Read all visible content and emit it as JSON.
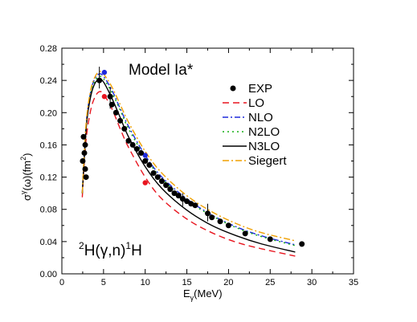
{
  "chart_data": {
    "type": "line",
    "annotations": {
      "model": "Model Ia*",
      "reaction_parts": [
        "2",
        "H(γ,n)",
        "1",
        "H"
      ]
    },
    "xlabel": {
      "main": "E",
      "sub": "γ",
      "rest": "(MeV)"
    },
    "ylabel": {
      "main": "σ",
      "sup1": "γ",
      "mid": "(ω)(fm",
      "sup2": "2",
      "end": ")"
    },
    "xlim": [
      0,
      35
    ],
    "ylim": [
      0.0,
      0.28
    ],
    "xticks": [
      0,
      5,
      10,
      15,
      20,
      25,
      30,
      35
    ],
    "xtick_labels": [
      "0",
      "5",
      "10",
      "15",
      "20",
      "25",
      "30",
      "35"
    ],
    "yticks": [
      0.0,
      0.04,
      0.08,
      0.12,
      0.16,
      0.2,
      0.24,
      0.28
    ],
    "ytick_labels": [
      "0.00",
      "0.04",
      "0.08",
      "0.12",
      "0.16",
      "0.20",
      "0.24",
      "0.28"
    ],
    "grid": false,
    "legend_position": "top-right",
    "series": [
      {
        "name": "EXP",
        "kind": "points",
        "color": "#000000",
        "points": [
          [
            2.5,
            0.14
          ],
          [
            2.6,
            0.17
          ],
          [
            2.7,
            0.15
          ],
          [
            2.8,
            0.16
          ],
          [
            2.8,
            0.13
          ],
          [
            2.9,
            0.12
          ],
          [
            4.5,
            0.24
          ],
          [
            5.8,
            0.22
          ],
          [
            6.0,
            0.21
          ],
          [
            6.5,
            0.2
          ],
          [
            7.0,
            0.19
          ],
          [
            7.5,
            0.18
          ],
          [
            8.0,
            0.165
          ],
          [
            8.5,
            0.16
          ],
          [
            9.0,
            0.155
          ],
          [
            9.5,
            0.15
          ],
          [
            10.0,
            0.14
          ],
          [
            10.5,
            0.135
          ],
          [
            11.0,
            0.125
          ],
          [
            11.5,
            0.12
          ],
          [
            12.0,
            0.115
          ],
          [
            12.5,
            0.11
          ],
          [
            13.0,
            0.105
          ],
          [
            13.5,
            0.1
          ],
          [
            14.0,
            0.097
          ],
          [
            14.5,
            0.093
          ],
          [
            15.0,
            0.09
          ],
          [
            15.5,
            0.087
          ],
          [
            16.0,
            0.085
          ],
          [
            17.5,
            0.075
          ],
          [
            18.0,
            0.07
          ],
          [
            19.0,
            0.065
          ],
          [
            20.0,
            0.06
          ],
          [
            22.0,
            0.05
          ],
          [
            25.0,
            0.043
          ],
          [
            28.8,
            0.037
          ]
        ],
        "errors": [
          [
            4.5,
            0.23,
            0.257
          ],
          [
            5.8,
            0.205,
            0.232
          ],
          [
            17.5,
            0.065,
            0.087
          ],
          [
            14.5,
            0.084,
            0.1
          ]
        ]
      },
      {
        "name": "LO",
        "kind": "curve",
        "color": "#e8141e",
        "dash": "8,5",
        "points": [
          [
            2.45,
            0.095
          ],
          [
            2.7,
            0.14
          ],
          [
            3.0,
            0.175
          ],
          [
            3.5,
            0.205
          ],
          [
            4.0,
            0.22
          ],
          [
            4.5,
            0.226
          ],
          [
            5.0,
            0.223
          ],
          [
            6.0,
            0.205
          ],
          [
            7.0,
            0.18
          ],
          [
            8.0,
            0.157
          ],
          [
            10.0,
            0.12
          ],
          [
            12.0,
            0.093
          ],
          [
            15.0,
            0.068
          ],
          [
            18.0,
            0.051
          ],
          [
            21.0,
            0.039
          ],
          [
            24.0,
            0.031
          ],
          [
            28.0,
            0.022
          ]
        ],
        "extra_points": [
          [
            5.1,
            0.22
          ],
          [
            10.0,
            0.113
          ]
        ]
      },
      {
        "name": "NLO",
        "kind": "curve",
        "color": "#1e2adc",
        "dash": "7,3,2,3",
        "points": [
          [
            2.45,
            0.1
          ],
          [
            2.7,
            0.15
          ],
          [
            3.0,
            0.195
          ],
          [
            3.5,
            0.228
          ],
          [
            4.0,
            0.243
          ],
          [
            4.5,
            0.248
          ],
          [
            5.0,
            0.245
          ],
          [
            6.0,
            0.228
          ],
          [
            7.0,
            0.205
          ],
          [
            8.0,
            0.183
          ],
          [
            10.0,
            0.147
          ],
          [
            12.0,
            0.12
          ],
          [
            15.0,
            0.093
          ],
          [
            18.0,
            0.073
          ],
          [
            21.0,
            0.058
          ],
          [
            24.0,
            0.047
          ],
          [
            28.0,
            0.036
          ]
        ],
        "extra_points": [
          [
            5.1,
            0.25
          ],
          [
            10.0,
            0.147
          ]
        ]
      },
      {
        "name": "N2LO",
        "kind": "curve",
        "color": "#16b016",
        "dash": "2,4",
        "points": [
          [
            2.45,
            0.1
          ],
          [
            2.7,
            0.148
          ],
          [
            3.0,
            0.192
          ],
          [
            3.5,
            0.225
          ],
          [
            4.0,
            0.24
          ],
          [
            4.5,
            0.245
          ],
          [
            5.0,
            0.242
          ],
          [
            6.0,
            0.225
          ],
          [
            7.0,
            0.203
          ],
          [
            8.0,
            0.18
          ],
          [
            10.0,
            0.145
          ],
          [
            12.0,
            0.118
          ],
          [
            15.0,
            0.091
          ],
          [
            18.0,
            0.072
          ],
          [
            21.0,
            0.057
          ],
          [
            24.0,
            0.046
          ],
          [
            28.0,
            0.035
          ]
        ]
      },
      {
        "name": "N3LO",
        "kind": "curve",
        "color": "#000000",
        "dash": "",
        "points": [
          [
            2.45,
            0.1
          ],
          [
            2.7,
            0.145
          ],
          [
            3.0,
            0.19
          ],
          [
            3.5,
            0.222
          ],
          [
            4.0,
            0.237
          ],
          [
            4.5,
            0.241
          ],
          [
            5.0,
            0.238
          ],
          [
            6.0,
            0.218
          ],
          [
            7.0,
            0.194
          ],
          [
            8.0,
            0.17
          ],
          [
            10.0,
            0.133
          ],
          [
            12.0,
            0.106
          ],
          [
            15.0,
            0.079
          ],
          [
            18.0,
            0.06
          ],
          [
            21.0,
            0.047
          ],
          [
            24.0,
            0.037
          ],
          [
            28.0,
            0.027
          ]
        ]
      },
      {
        "name": "Siegert",
        "kind": "curve",
        "color": "#f0a000",
        "dash": "8,3,2,3",
        "points": [
          [
            2.45,
            0.1
          ],
          [
            2.7,
            0.152
          ],
          [
            3.0,
            0.197
          ],
          [
            3.5,
            0.23
          ],
          [
            4.0,
            0.245
          ],
          [
            4.5,
            0.251
          ],
          [
            5.0,
            0.248
          ],
          [
            6.0,
            0.232
          ],
          [
            7.0,
            0.21
          ],
          [
            8.0,
            0.188
          ],
          [
            10.0,
            0.152
          ],
          [
            12.0,
            0.125
          ],
          [
            15.0,
            0.097
          ],
          [
            18.0,
            0.077
          ],
          [
            21.0,
            0.062
          ],
          [
            24.0,
            0.051
          ],
          [
            28.0,
            0.041
          ]
        ]
      }
    ]
  }
}
